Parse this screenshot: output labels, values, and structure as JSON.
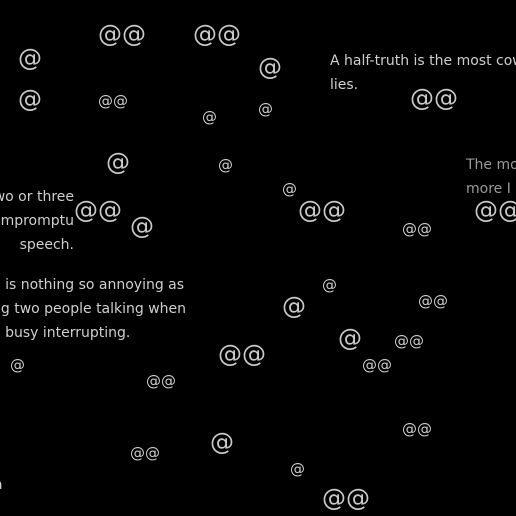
{
  "colors": {
    "background": "#000000",
    "text": "#cfcfcf",
    "text_dim": "#9a9a9a"
  },
  "at_symbols": [
    "@@",
    "@@",
    "@",
    "@",
    "@",
    "@@",
    "@",
    "@",
    "@@",
    "@",
    "@",
    "@",
    "@@",
    "@",
    "@@",
    "@@",
    "@@",
    "@",
    "@",
    "@@",
    "@",
    "@@",
    "@",
    "@@",
    "@@",
    "@@",
    "@",
    "@@",
    "@@",
    "@",
    "@@",
    "@",
    "@"
  ],
  "quotes": [
    {
      "lines": [
        "A half-truth is the most coward",
        "lies."
      ]
    },
    {
      "lines": [
        "The more",
        "more I li"
      ]
    },
    {
      "lines": [
        "wo or three",
        "n impromptu",
        "speech."
      ]
    },
    {
      "lines": [
        "e is nothing so annoying as",
        "ng two people talking when",
        "e busy interrupting."
      ]
    },
    {
      "lines": [
        "a"
      ]
    }
  ]
}
